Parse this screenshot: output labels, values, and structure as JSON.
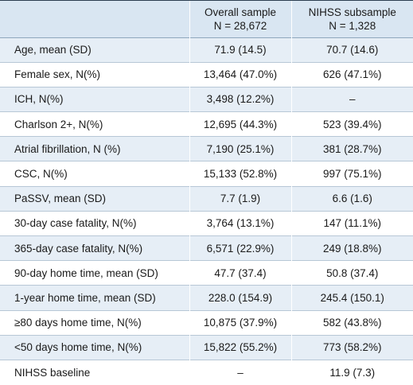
{
  "header": {
    "col1": "",
    "col2_line1": "Overall sample",
    "col2_line2": "N = 28,672",
    "col3_line1": "NIHSS subsample",
    "col3_line2": "N = 1,328"
  },
  "rows": [
    {
      "label": "Age, mean (SD)",
      "overall": "71.9 (14.5)",
      "nihss": "70.7 (14.6)"
    },
    {
      "label": "Female sex, N(%)",
      "overall": "13,464 (47.0%)",
      "nihss": "626 (47.1%)"
    },
    {
      "label": "ICH, N(%)",
      "overall": "3,498 (12.2%)",
      "nihss": "–"
    },
    {
      "label": "Charlson 2+, N(%)",
      "overall": "12,695 (44.3%)",
      "nihss": "523 (39.4%)"
    },
    {
      "label": "Atrial fibrillation, N (%)",
      "overall": "7,190 (25.1%)",
      "nihss": "381 (28.7%)"
    },
    {
      "label": "CSC, N(%)",
      "overall": "15,133 (52.8%)",
      "nihss": "997 (75.1%)"
    },
    {
      "label": "PaSSV, mean (SD)",
      "overall": "7.7 (1.9)",
      "nihss": "6.6 (1.6)"
    },
    {
      "label": "30-day case fatality, N(%)",
      "overall": "3,764 (13.1%)",
      "nihss": "147 (11.1%)"
    },
    {
      "label": "365-day case fatality, N(%)",
      "overall": "6,571 (22.9%)",
      "nihss": "249 (18.8%)"
    },
    {
      "label": "90-day home time, mean (SD)",
      "overall": "47.7 (37.4)",
      "nihss": "50.8 (37.4)"
    },
    {
      "label": "1-year home time, mean (SD)",
      "overall": "228.0 (154.9)",
      "nihss": "245.4 (150.1)"
    },
    {
      "label": "≥80 days home time, N(%)",
      "overall": "10,875 (37.9%)",
      "nihss": "582 (43.8%)"
    },
    {
      "label": "<50 days home time, N(%)",
      "overall": "15,822 (55.2%)",
      "nihss": "773 (58.2%)"
    },
    {
      "label": "NIHSS baseline",
      "overall": "–",
      "nihss": "11.9 (7.3)"
    }
  ],
  "colors": {
    "header_bg": "#d9e6f2",
    "stripe_bg": "#e6eef6",
    "rule": "#2c3e50"
  }
}
